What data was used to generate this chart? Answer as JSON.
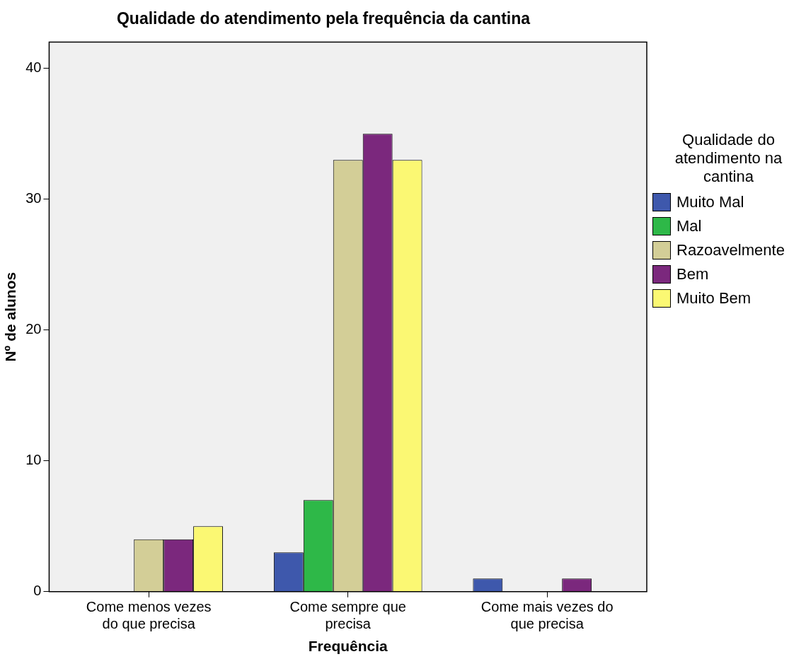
{
  "chart_data": {
    "type": "bar",
    "title": "Qualidade do atendimento pela frequência da cantina",
    "xlabel": "Frequência",
    "ylabel": "Nº de alunos",
    "legend_title": "Qualidade do atendimento na cantina",
    "categories": [
      "Come menos vezes do que precisa",
      "Come sempre que precisa",
      "Come mais vezes do que precisa"
    ],
    "series": [
      {
        "name": "Muito Mal",
        "color": "#3e58ac",
        "values": [
          0,
          3,
          1
        ]
      },
      {
        "name": "Mal",
        "color": "#2eb848",
        "values": [
          0,
          7,
          0
        ]
      },
      {
        "name": "Razoavelmente",
        "color": "#d3ce97",
        "values": [
          4,
          33,
          0
        ]
      },
      {
        "name": "Bem",
        "color": "#7b287d",
        "values": [
          4,
          35,
          1
        ]
      },
      {
        "name": "Muito Bem",
        "color": "#fbf873",
        "values": [
          5,
          33,
          0
        ]
      }
    ],
    "ylim": [
      0,
      42
    ],
    "yticks": [
      0,
      10,
      20,
      30,
      40
    ],
    "grid": false,
    "legend": "right"
  }
}
